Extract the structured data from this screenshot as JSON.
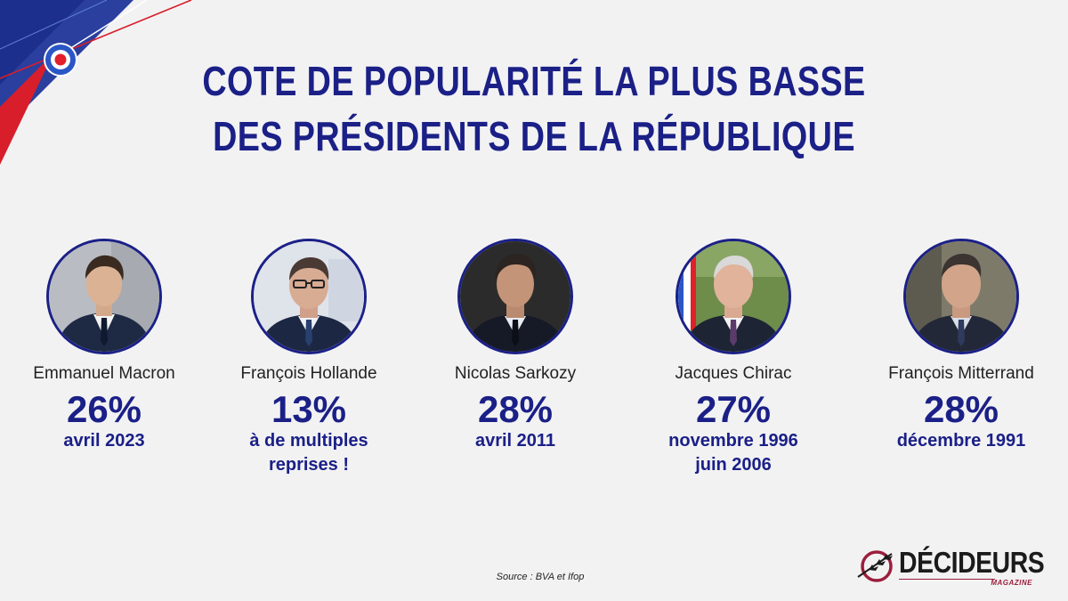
{
  "title": {
    "line1": "COTE DE POPULARITÉ LA PLUS BASSE",
    "line2": "DES PRÉSIDENTS DE LA RÉPUBLIQUE"
  },
  "presidents": [
    {
      "name": "Emmanuel Macron",
      "score": "26%",
      "date_line1": "avril 2023",
      "date_line2": ""
    },
    {
      "name": "François Hollande",
      "score": "13%",
      "date_line1": "à de multiples",
      "date_line2": "reprises !"
    },
    {
      "name": "Nicolas Sarkozy",
      "score": "28%",
      "date_line1": "avril 2011",
      "date_line2": ""
    },
    {
      "name": "Jacques Chirac",
      "score": "27%",
      "date_line1": "novembre 1996",
      "date_line2": "juin 2006"
    },
    {
      "name": "François Mitterrand",
      "score": "28%",
      "date_line1": "décembre 1991",
      "date_line2": ""
    }
  ],
  "source": "Source : BVA et Ifop",
  "logo": {
    "name": "DÉCIDEURS",
    "sub": "MAGAZINE"
  },
  "colors": {
    "accent": "#1b2087",
    "background": "#f2f2f3",
    "flag_blue": "#1f3fa8",
    "flag_red": "#e1202a",
    "logo_red": "#9c1e3c"
  }
}
